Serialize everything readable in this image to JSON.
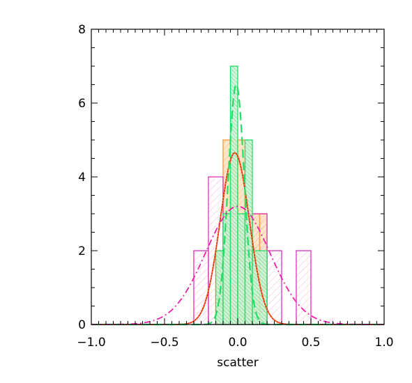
{
  "chart_data": {
    "type": "histogram",
    "title": "",
    "xlabel": "scatter",
    "ylabel": "",
    "xlim": [
      -1.0,
      1.0
    ],
    "ylim": [
      0,
      8
    ],
    "x_ticks": [
      -1.0,
      -0.5,
      0.0,
      0.5,
      1.0
    ],
    "x_tick_labels": [
      "−1.0",
      "−0.5",
      "0.0",
      "0.5",
      "1.0"
    ],
    "y_ticks": [
      0,
      2,
      4,
      6,
      8
    ],
    "y_tick_labels": [
      "0",
      "2",
      "4",
      "6",
      "8"
    ],
    "grid": false,
    "histograms": [
      {
        "color": "#ff9933",
        "fill": "hatched-light",
        "bins": [
          {
            "x0": -0.15,
            "x1": -0.1,
            "count": 2
          },
          {
            "x0": -0.1,
            "x1": -0.05,
            "count": 5
          },
          {
            "x0": -0.05,
            "x1": 0.0,
            "count": 5
          },
          {
            "x0": 0.0,
            "x1": 0.05,
            "count": 5
          },
          {
            "x0": 0.05,
            "x1": 0.1,
            "count": 3
          },
          {
            "x0": 0.1,
            "x1": 0.15,
            "count": 3
          },
          {
            "x0": 0.15,
            "x1": 0.2,
            "count": 3
          }
        ]
      },
      {
        "color": "#dd33bb",
        "fill": "hatched-sparse",
        "bins": [
          {
            "x0": -0.3,
            "x1": -0.2,
            "count": 2
          },
          {
            "x0": -0.2,
            "x1": -0.1,
            "count": 4
          },
          {
            "x0": -0.1,
            "x1": 0.0,
            "count": 3
          },
          {
            "x0": 0.0,
            "x1": 0.1,
            "count": 2
          },
          {
            "x0": 0.1,
            "x1": 0.2,
            "count": 3
          },
          {
            "x0": 0.2,
            "x1": 0.3,
            "count": 2
          },
          {
            "x0": 0.3,
            "x1": 0.4,
            "count": 0
          },
          {
            "x0": 0.4,
            "x1": 0.5,
            "count": 2
          }
        ]
      },
      {
        "color": "#22dd66",
        "fill": "hatched-dense",
        "bins": [
          {
            "x0": -0.15,
            "x1": -0.1,
            "count": 2
          },
          {
            "x0": -0.1,
            "x1": -0.05,
            "count": 3
          },
          {
            "x0": -0.05,
            "x1": 0.0,
            "count": 7
          },
          {
            "x0": 0.0,
            "x1": 0.05,
            "count": 3
          },
          {
            "x0": 0.05,
            "x1": 0.1,
            "count": 5
          },
          {
            "x0": 0.1,
            "x1": 0.2,
            "count": 2
          }
        ]
      }
    ],
    "curves": [
      {
        "kind": "gaussian",
        "mean": -0.02,
        "sigma": 0.1,
        "peak": 4.65,
        "color": "#dd2222",
        "dash": "solid"
      },
      {
        "kind": "gaussian",
        "mean": -0.02,
        "sigma": 0.1,
        "peak": 4.65,
        "color": "#ff8800",
        "dash": "dotted"
      },
      {
        "kind": "gaussian",
        "mean": -0.01,
        "sigma": 0.055,
        "peak": 6.5,
        "color": "#22dd66",
        "dash": "dashed"
      },
      {
        "kind": "gaussian",
        "mean": 0.0,
        "sigma": 0.22,
        "peak": 3.2,
        "color": "#ee22aa",
        "dash": "dash-dot"
      }
    ]
  }
}
